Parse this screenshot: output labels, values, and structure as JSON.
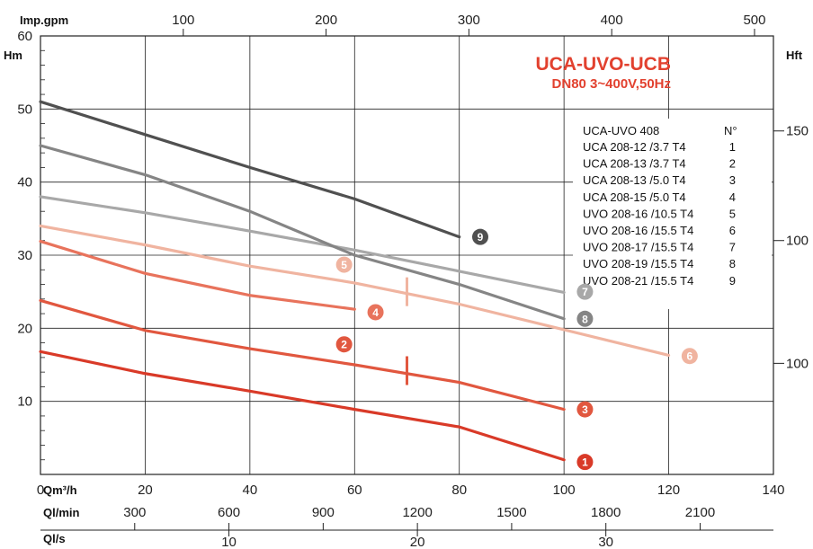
{
  "chart_data": {
    "type": "line",
    "title": "UCA-UVO-UCB",
    "subtitle": "DN80 3~400V,50Hz",
    "xlabel": "Qm³/h",
    "ylabel": "Hm",
    "y2label": "Hft",
    "top_axis_label": "Imp.gpm",
    "lower_axis1_label": "Ql/min",
    "lower_axis2_label": "Ql/s",
    "xlim": [
      0,
      140
    ],
    "ylim": [
      0,
      60
    ],
    "grid": true,
    "x_ticks": [
      "0",
      "20",
      "40",
      "60",
      "80",
      "100",
      "120",
      "140"
    ],
    "y_ticks": [
      "10",
      "20",
      "30",
      "40",
      "50",
      "60"
    ],
    "top_ticks": [
      "100",
      "200",
      "300",
      "400",
      "500"
    ],
    "lmin_ticks": [
      "300",
      "600",
      "900",
      "1200",
      "1500",
      "1800",
      "2100"
    ],
    "ls_ticks": [
      "10",
      "20",
      "30"
    ],
    "right_ticks": [
      "150",
      "100",
      "100"
    ],
    "legend": {
      "header_model": "UCA-UVO 408",
      "header_no": "N°",
      "entries": [
        {
          "model": "UCA 208-12 /3.7 T4",
          "no": "1"
        },
        {
          "model": "UCA 208-13 /3.7 T4",
          "no": "2"
        },
        {
          "model": "UCA 208-13 /5.0 T4",
          "no": "3"
        },
        {
          "model": "UCA 208-15 /5.0 T4",
          "no": "4"
        },
        {
          "model": "UVO 208-16 /10.5 T4",
          "no": "5"
        },
        {
          "model": "UVO 208-16 /15.5 T4",
          "no": "6"
        },
        {
          "model": "UVO 208-17 /15.5 T4",
          "no": "7"
        },
        {
          "model": "UVO 208-19 /15.5 T4",
          "no": "8"
        },
        {
          "model": "UVO 208-21 /15.5 T4",
          "no": "9"
        }
      ]
    },
    "series": [
      {
        "name": "1",
        "color": "#d93a28",
        "x": [
          0,
          20,
          40,
          60,
          80,
          100
        ],
        "y": [
          16.8,
          13.8,
          11.4,
          8.9,
          6.5,
          2.0
        ],
        "badge_at": [
          104,
          1.7
        ]
      },
      {
        "name": "3",
        "color": "#e1573f",
        "x": [
          0,
          20,
          40,
          60,
          80,
          100
        ],
        "y": [
          23.8,
          19.7,
          17.2,
          15.0,
          12.6,
          8.9
        ],
        "badge_at": [
          104,
          8.9
        ]
      },
      {
        "name": "4",
        "color": "#e8735c",
        "x": [
          0,
          20,
          40,
          60
        ],
        "y": [
          31.9,
          27.5,
          24.5,
          22.6
        ],
        "badge_at": [
          64,
          22.2
        ]
      },
      {
        "name": "6",
        "color": "#f0b4a0",
        "x": [
          0,
          20,
          40,
          60,
          80,
          100,
          120
        ],
        "y": [
          34.0,
          31.4,
          28.5,
          26.2,
          23.3,
          19.8,
          16.3
        ],
        "badge_at": [
          124,
          16.2
        ]
      },
      {
        "name": "7",
        "color": "#a8a8a8",
        "x": [
          0,
          20,
          40,
          60,
          80,
          100
        ],
        "y": [
          38.0,
          35.8,
          33.3,
          30.7,
          27.8,
          24.9
        ],
        "badge_at": [
          104,
          25.0
        ]
      },
      {
        "name": "8",
        "color": "#858585",
        "x": [
          0,
          20,
          40,
          60,
          80,
          100
        ],
        "y": [
          45.0,
          41.0,
          36.0,
          30.0,
          26.0,
          21.3
        ],
        "badge_at": [
          104,
          21.3
        ]
      },
      {
        "name": "9",
        "color": "#505050",
        "x": [
          0,
          20,
          40,
          60,
          80
        ],
        "y": [
          51.0,
          46.5,
          42.0,
          37.7,
          32.5
        ],
        "badge_at": [
          84,
          32.5
        ]
      }
    ],
    "extra_badges": [
      {
        "name": "2",
        "color": "#e1573f",
        "at": [
          58,
          17.8
        ]
      },
      {
        "name": "5",
        "color": "#f0b4a0",
        "at": [
          58,
          28.7
        ]
      }
    ],
    "markers": [
      {
        "color": "#e1573f",
        "at": [
          70,
          14.2
        ]
      },
      {
        "color": "#f0b4a0",
        "at": [
          70,
          25.0
        ]
      }
    ]
  }
}
